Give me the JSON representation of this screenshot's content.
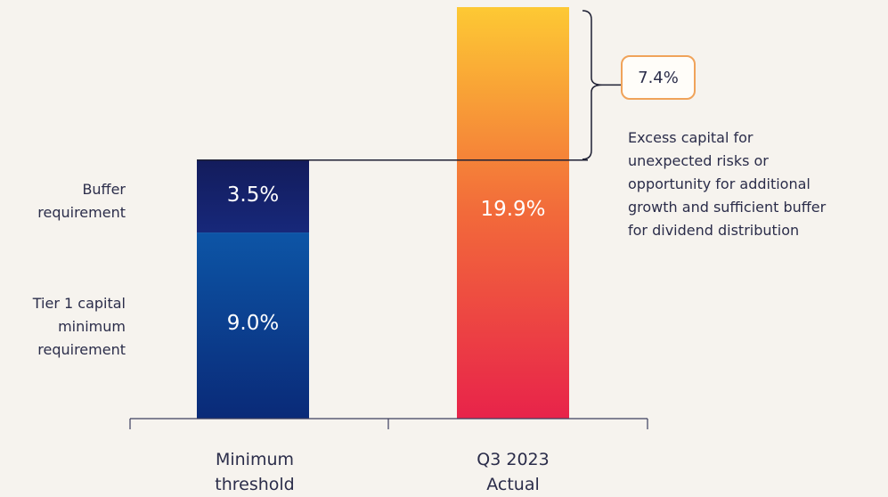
{
  "chart_data": {
    "type": "bar",
    "stacked": true,
    "categories": [
      "Minimum\nthreshold",
      "Q3 2023\nActual"
    ],
    "series": [
      {
        "name": "Tier 1 capital\nminimum\nrequirement",
        "values": [
          9.0,
          null
        ],
        "value_labels": [
          "9.0%",
          ""
        ]
      },
      {
        "name": "Buffer\nrequirement",
        "values": [
          3.5,
          null
        ],
        "value_labels": [
          "3.5%",
          ""
        ]
      },
      {
        "name": "",
        "values": [
          null,
          19.9
        ],
        "value_labels": [
          "",
          "19.9%"
        ]
      }
    ],
    "annotation": {
      "value": 7.4,
      "label": "7.4%",
      "text": "Excess capital for\nunexpected risks or\nopportunity for additional\ngrowth and sufficient buffer\nfor dividend distribution"
    },
    "ylim": [
      0,
      19.9
    ],
    "grid": false,
    "colors": {
      "tier1": "#0c3d8f",
      "buffer": "#15256b",
      "actual_top": "#fdc934",
      "actual_bottom": "#e8234a",
      "callout_border": "#f0a35a"
    }
  }
}
